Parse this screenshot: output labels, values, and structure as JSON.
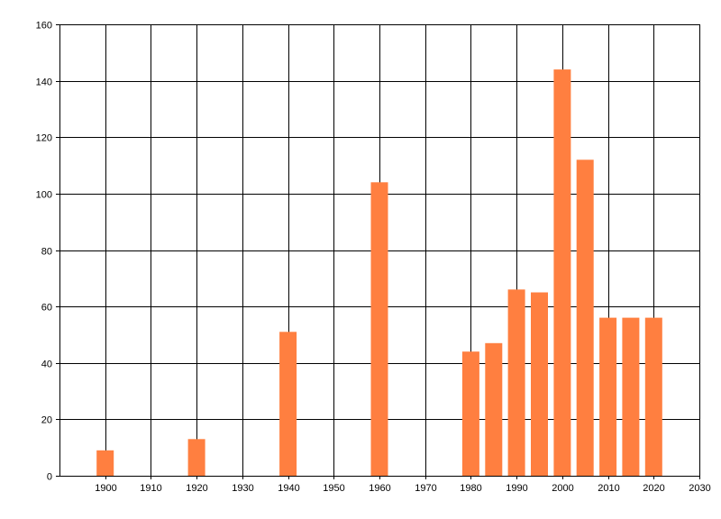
{
  "chart_data": {
    "type": "bar",
    "title": "",
    "xlabel": "",
    "ylabel": "",
    "x": [
      1900,
      1920,
      1940,
      1960,
      1980,
      1985,
      1990,
      1995,
      2000,
      2005,
      2010,
      2015,
      2020
    ],
    "values": [
      9,
      13,
      51,
      104,
      44,
      47,
      66,
      65,
      144,
      112,
      56,
      56,
      56
    ],
    "xlim": [
      1890,
      2030
    ],
    "ylim": [
      0,
      160
    ],
    "x_ticks": [
      1900,
      1910,
      1920,
      1930,
      1940,
      1950,
      1960,
      1970,
      1980,
      1990,
      2000,
      2010,
      2020,
      2030
    ],
    "y_ticks": [
      0,
      20,
      40,
      60,
      80,
      100,
      120,
      140,
      160
    ],
    "bar_color": "#ff7f40",
    "grid": true,
    "legend": "none"
  }
}
